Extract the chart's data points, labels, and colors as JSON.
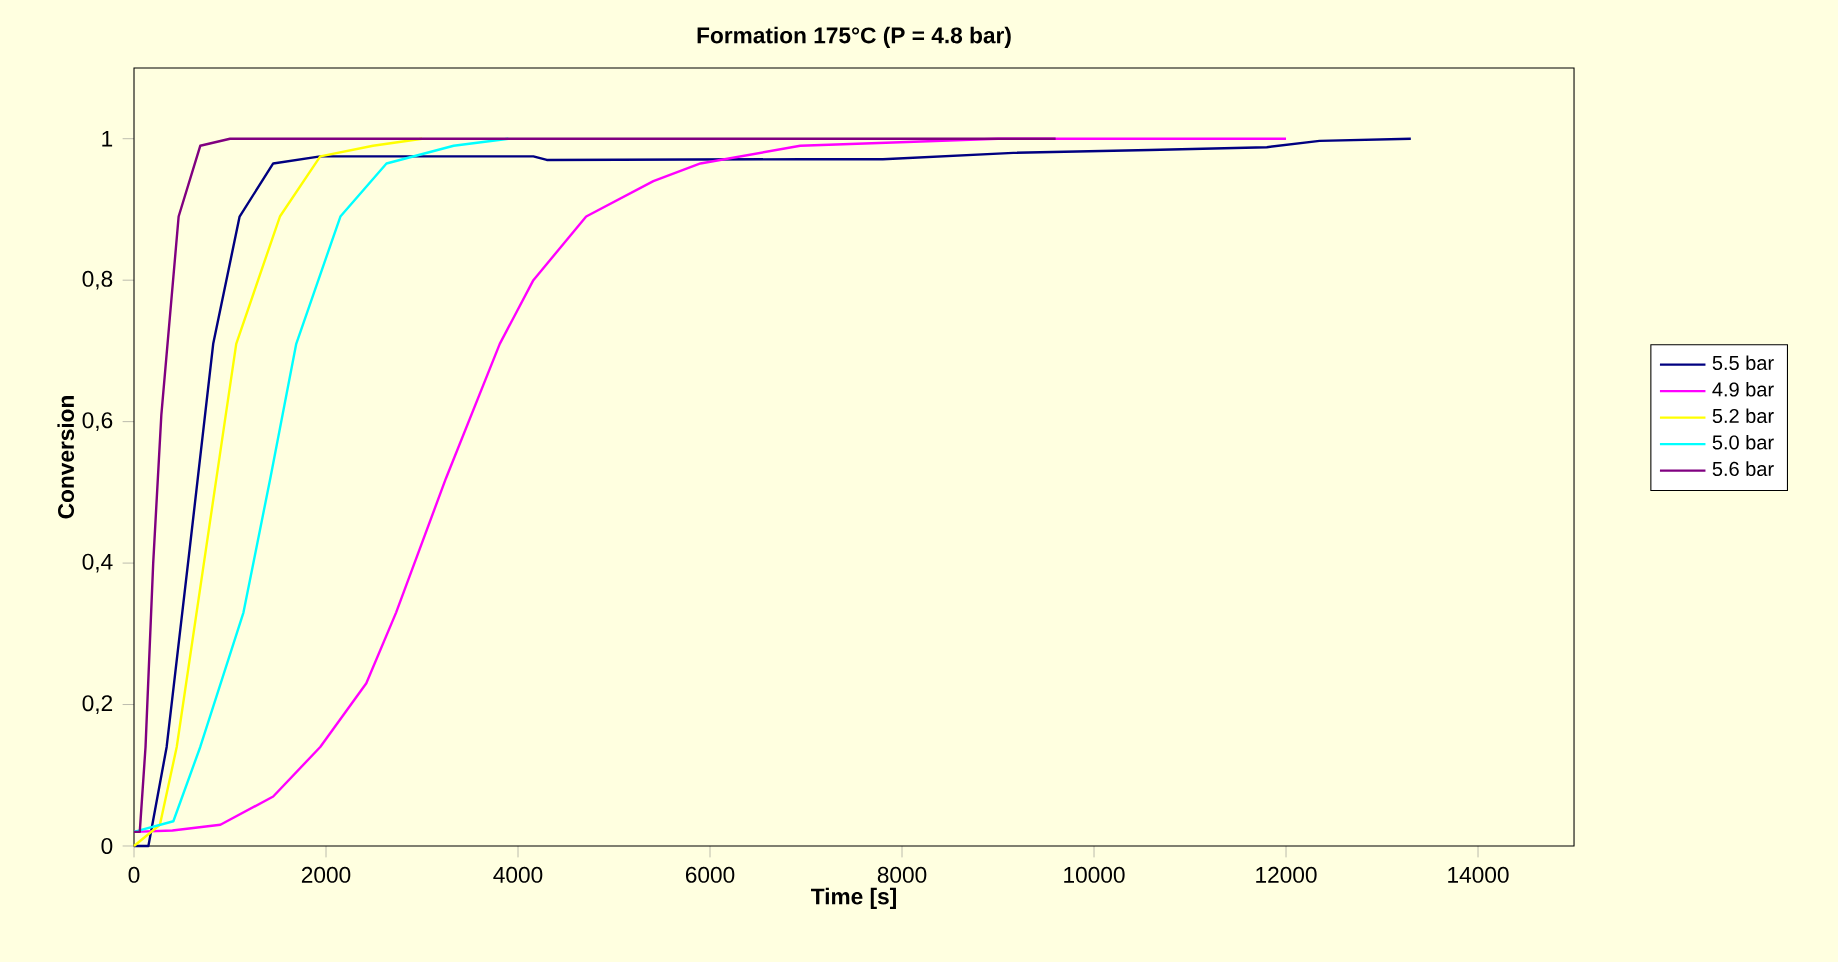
{
  "chart_data": {
    "type": "line",
    "title": "Formation 175°C (P = 4.8 bar)",
    "xlabel": "Time [s]",
    "ylabel": "Conversion",
    "xlim": [
      0,
      15000
    ],
    "ylim": [
      0,
      1.1
    ],
    "xticks": [
      0,
      2000,
      4000,
      6000,
      8000,
      10000,
      12000,
      14000
    ],
    "yticks": [
      0,
      {
        "value": 0.2,
        "label": "0,2"
      },
      {
        "value": 0.4,
        "label": "0,4"
      },
      {
        "value": 0.6,
        "label": "0,6"
      },
      {
        "value": 0.8,
        "label": "0,8"
      },
      1
    ],
    "grid": false,
    "legend": "right",
    "marker": "none",
    "line_style": "solid",
    "series": [
      {
        "name": "5.5 bar",
        "color": "#000080",
        "x": [
          0,
          150,
          340,
          580,
          825,
          1100,
          1450,
          1940,
          4160,
          4300,
          6940,
          7800,
          9160,
          10580,
          11800,
          12350,
          13300
        ],
        "values": [
          0,
          0,
          0.14,
          0.42,
          0.71,
          0.89,
          0.965,
          0.975,
          0.975,
          0.97,
          0.971,
          0.971,
          0.98,
          0.984,
          0.988,
          0.997,
          1.0
        ]
      },
      {
        "name": "4.9 bar",
        "color": "#ff00ff",
        "x": [
          0,
          400,
          900,
          1450,
          1940,
          2420,
          2730,
          3250,
          3810,
          4160,
          4710,
          5410,
          5900,
          6940,
          7980,
          9000,
          12000
        ],
        "values": [
          0.02,
          0.022,
          0.03,
          0.07,
          0.14,
          0.23,
          0.33,
          0.52,
          0.71,
          0.8,
          0.89,
          0.94,
          0.965,
          0.99,
          0.995,
          1.0,
          1.0
        ]
      },
      {
        "name": "5.2 bar",
        "color": "#ffff00",
        "x": [
          0,
          270,
          445,
          750,
          1065,
          1520,
          1940,
          2490,
          3000
        ],
        "values": [
          0,
          0.03,
          0.14,
          0.42,
          0.71,
          0.89,
          0.975,
          0.99,
          1.0
        ]
      },
      {
        "name": "5.0 bar",
        "color": "#00ffff",
        "x": [
          0,
          410,
          690,
          1140,
          1420,
          1690,
          2150,
          2630,
          3330,
          3900
        ],
        "values": [
          0.02,
          0.035,
          0.14,
          0.33,
          0.52,
          0.71,
          0.89,
          0.965,
          0.99,
          1.0
        ]
      },
      {
        "name": "5.6 bar",
        "color": "#800080",
        "x": [
          0,
          60,
          120,
          200,
          285,
          465,
          690,
          1000,
          9600
        ],
        "values": [
          0.02,
          0.02,
          0.14,
          0.4,
          0.61,
          0.89,
          0.99,
          1.0,
          1.0
        ]
      }
    ]
  }
}
